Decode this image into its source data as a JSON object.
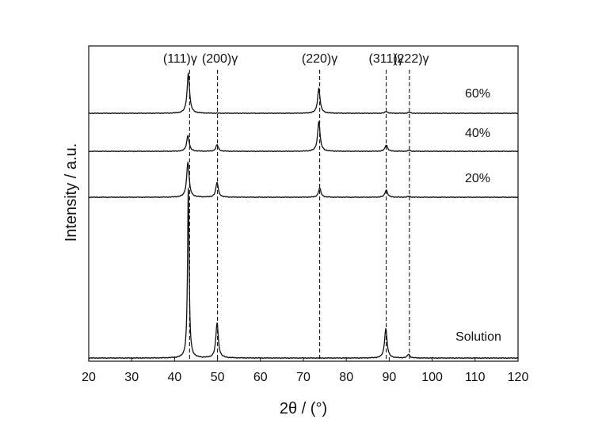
{
  "chart_data": {
    "type": "line",
    "xlabel": "2θ / (°)",
    "ylabel": "Intensity / a.u.",
    "xlim": [
      20,
      120
    ],
    "x_ticks": [
      20,
      30,
      40,
      50,
      60,
      70,
      80,
      90,
      100,
      110,
      120
    ],
    "y_ticks_shown": false,
    "grid": false,
    "legend": "none",
    "peak_labels": [
      {
        "label": "(111)γ",
        "x": 43.5
      },
      {
        "label": "(200)γ",
        "x": 50.0
      },
      {
        "label": "(220)γ",
        "x": 73.8
      },
      {
        "label": "(311)γ",
        "x": 89.3
      },
      {
        "label": "(222)γ",
        "x": 94.7
      }
    ],
    "series": [
      {
        "name": "60%",
        "peaks": [
          {
            "x": 43.2,
            "h": 0.43
          },
          {
            "x": 73.6,
            "h": 0.27
          },
          {
            "x": 89.3,
            "h": 0.02
          },
          {
            "x": 94.6,
            "h": 0.01
          }
        ]
      },
      {
        "name": "40%",
        "peaks": [
          {
            "x": 43.1,
            "h": 0.17
          },
          {
            "x": 49.9,
            "h": 0.07
          },
          {
            "x": 73.6,
            "h": 0.32
          },
          {
            "x": 89.3,
            "h": 0.07
          },
          {
            "x": 94.6,
            "h": 0.01
          }
        ]
      },
      {
        "name": "20%",
        "peaks": [
          {
            "x": 43.1,
            "h": 0.38
          },
          {
            "x": 49.9,
            "h": 0.16
          },
          {
            "x": 73.8,
            "h": 0.1
          },
          {
            "x": 89.3,
            "h": 0.08
          },
          {
            "x": 94.6,
            "h": 0.01
          }
        ]
      },
      {
        "name": "Solution",
        "peaks": [
          {
            "x": 43.2,
            "h": 1.85
          },
          {
            "x": 49.9,
            "h": 0.38
          },
          {
            "x": 89.2,
            "h": 0.32
          },
          {
            "x": 94.5,
            "h": 0.04
          }
        ]
      }
    ]
  }
}
